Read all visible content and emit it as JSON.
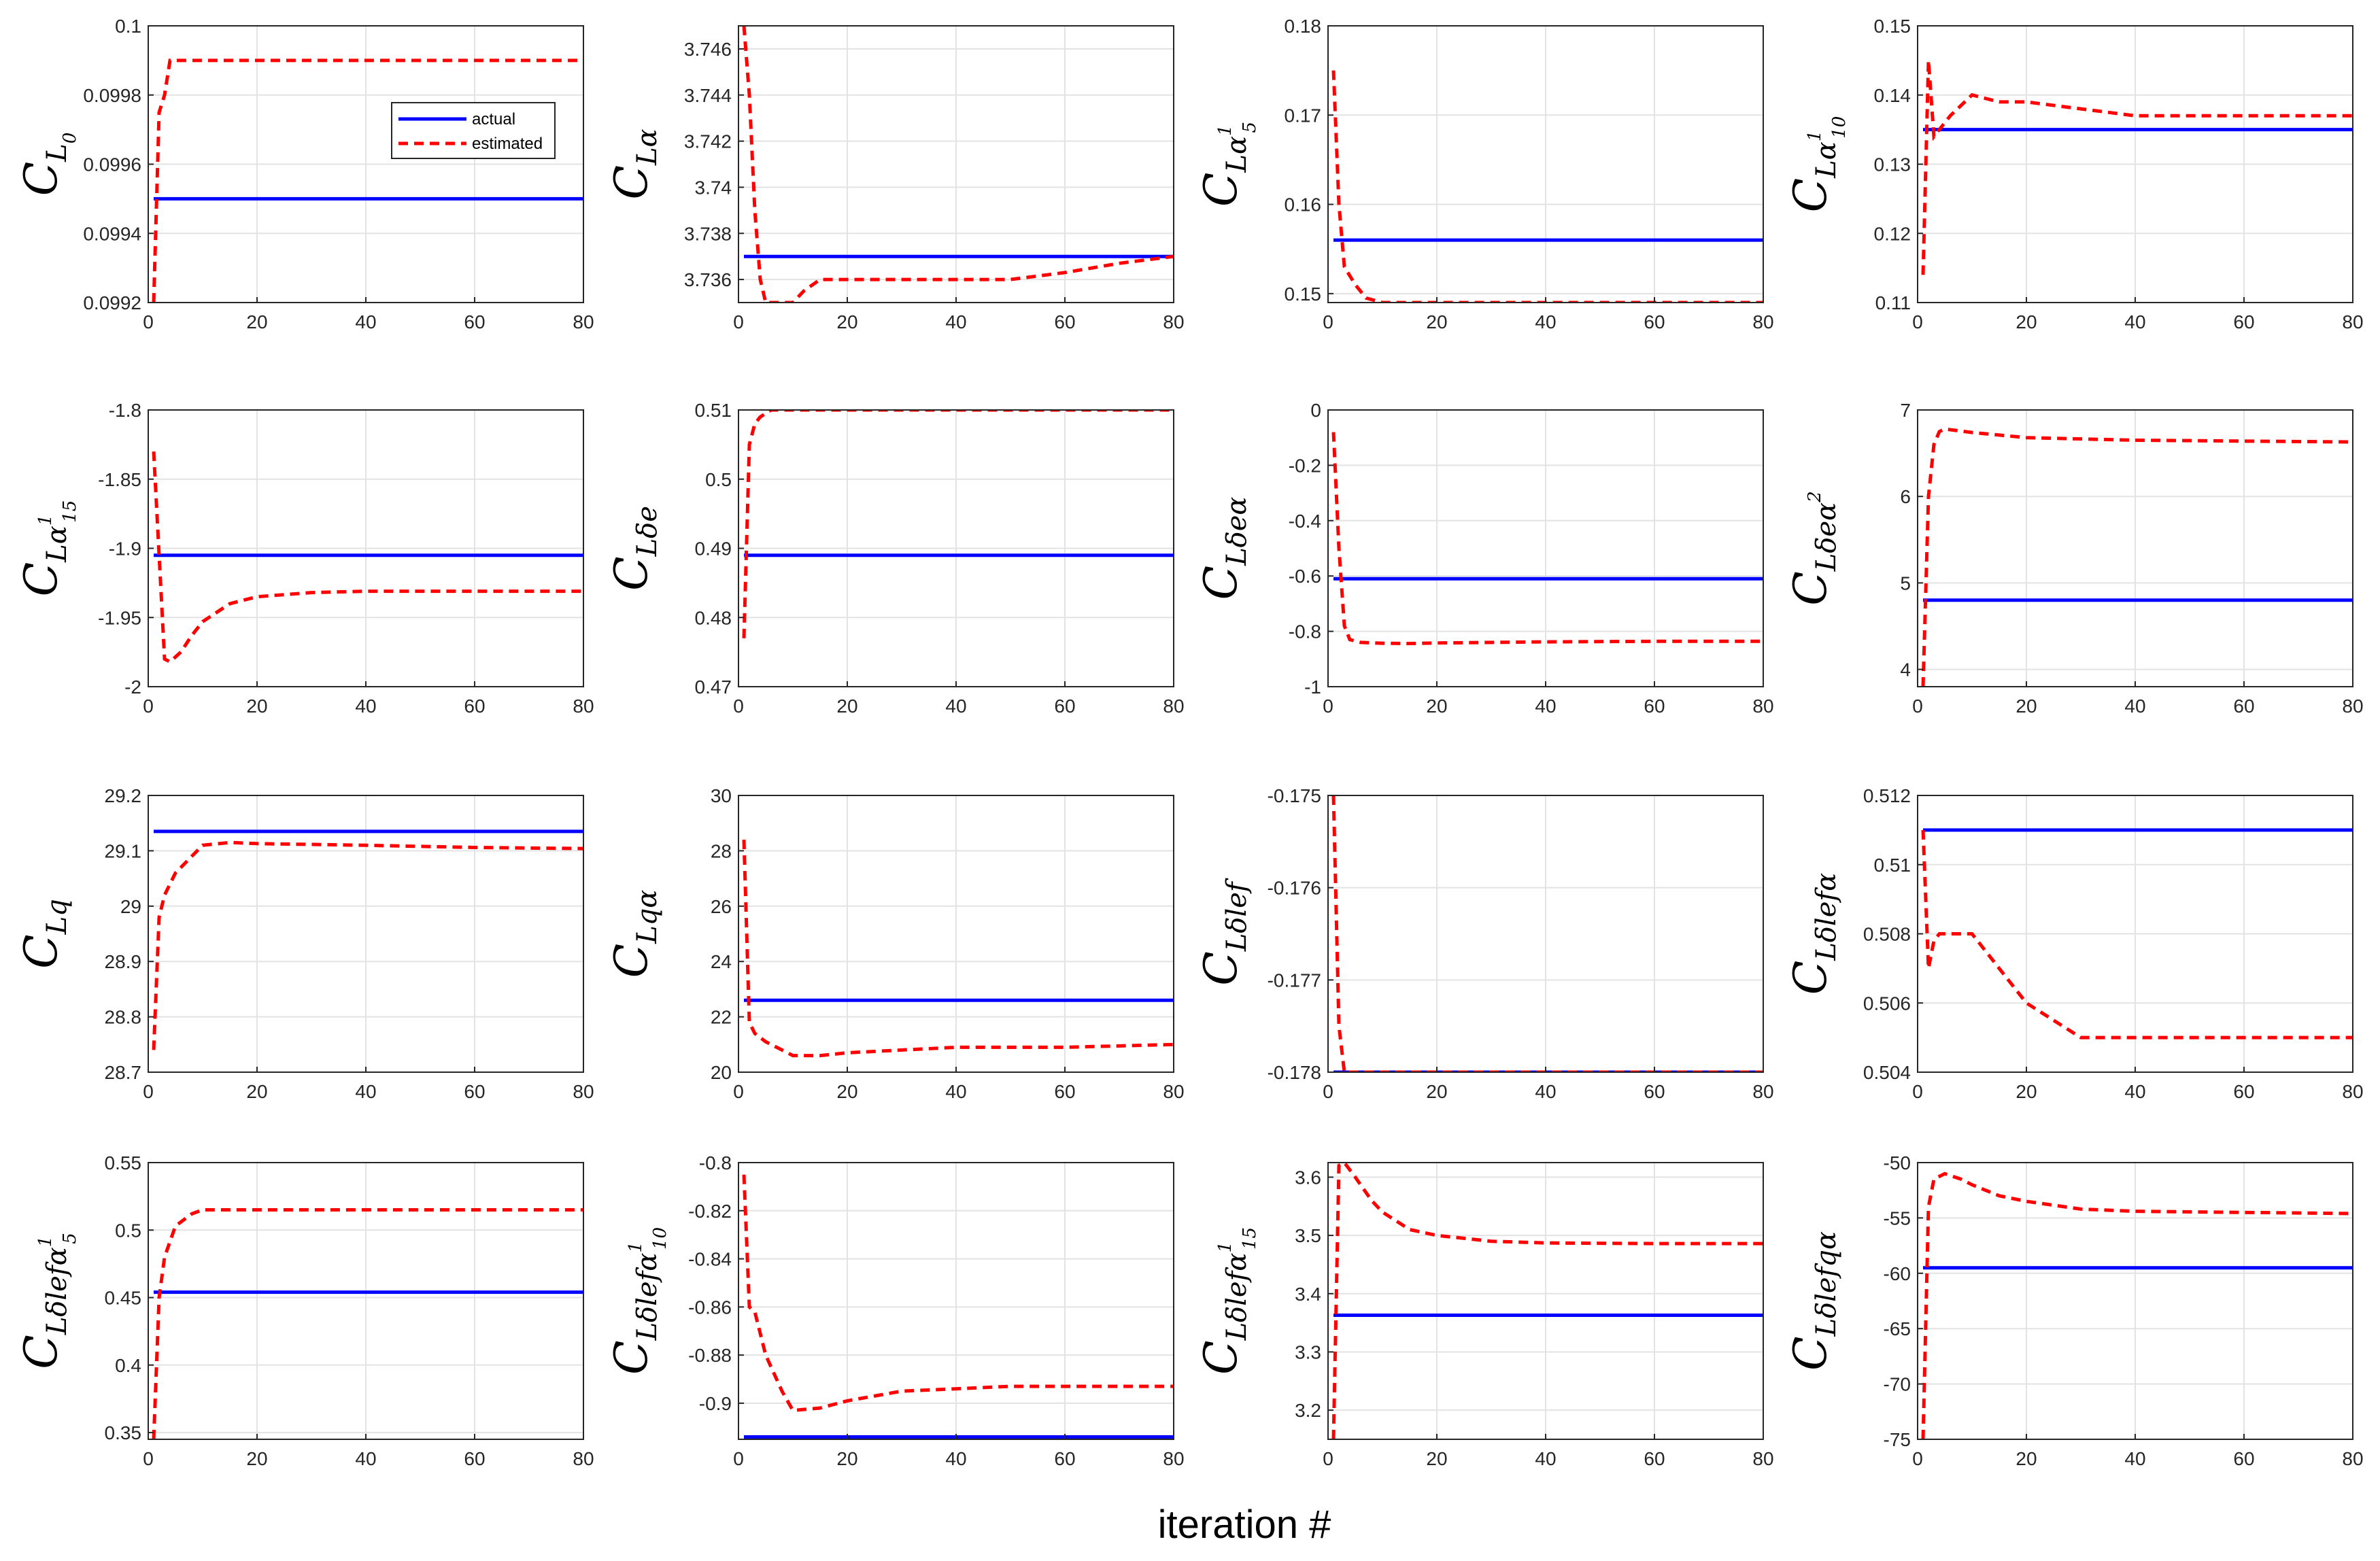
{
  "figure": {
    "xlabel": "iteration #"
  },
  "legend": {
    "actual_label": "actual",
    "estimated_label": "estimated"
  },
  "colors": {
    "actual": "#0000ff",
    "estimated": "#ff0000",
    "grid": "#e3e3e3",
    "axis": "#262626"
  },
  "chart_data": [
    {
      "type": "line",
      "ylabel": {
        "main": "C",
        "sub": "L",
        "subsub": "0",
        "sup": ""
      },
      "xlim": [
        0,
        80
      ],
      "ylim": [
        0.0992,
        0.1
      ],
      "xticks": [
        0,
        20,
        40,
        60,
        80
      ],
      "yticks": [
        0.0992,
        0.0994,
        0.0996,
        0.0998,
        0.1
      ],
      "ytick_labels": [
        "0.0992",
        "0.0994",
        "0.0996",
        "0.0998",
        "0.1"
      ],
      "series": [
        {
          "name": "actual",
          "x": [
            1,
            80
          ],
          "y": [
            0.0995,
            0.0995
          ]
        },
        {
          "name": "estimated",
          "x": [
            1,
            2,
            3,
            4,
            5,
            80
          ],
          "y": [
            0.0992,
            0.09975,
            0.0998,
            0.0999,
            0.0999,
            0.0999
          ]
        }
      ]
    },
    {
      "type": "line",
      "ylabel": {
        "main": "C",
        "sub": "Lα",
        "subsub": "",
        "sup": ""
      },
      "xlim": [
        0,
        80
      ],
      "ylim": [
        3.735,
        3.747
      ],
      "xticks": [
        0,
        20,
        40,
        60,
        80
      ],
      "yticks": [
        3.736,
        3.738,
        3.74,
        3.742,
        3.744,
        3.746
      ],
      "ytick_labels": [
        "3.736",
        "3.738",
        "3.74",
        "3.742",
        "3.744",
        "3.746"
      ],
      "series": [
        {
          "name": "actual",
          "x": [
            1,
            80
          ],
          "y": [
            3.737,
            3.737
          ]
        },
        {
          "name": "estimated",
          "x": [
            1,
            2,
            3,
            4,
            5,
            7,
            10,
            12,
            15,
            20,
            30,
            40,
            50,
            60,
            70,
            80
          ],
          "y": [
            3.747,
            3.744,
            3.739,
            3.736,
            3.735,
            3.735,
            3.735,
            3.7355,
            3.736,
            3.736,
            3.736,
            3.736,
            3.736,
            3.7363,
            3.7367,
            3.737
          ]
        }
      ]
    },
    {
      "type": "line",
      "ylabel": {
        "main": "C",
        "sub": "Lα",
        "subsub": "5",
        "sup": "1"
      },
      "xlim": [
        0,
        80
      ],
      "ylim": [
        0.149,
        0.18
      ],
      "xticks": [
        0,
        20,
        40,
        60,
        80
      ],
      "yticks": [
        0.15,
        0.16,
        0.17,
        0.18
      ],
      "ytick_labels": [
        "0.15",
        "0.16",
        "0.17",
        "0.18"
      ],
      "series": [
        {
          "name": "actual",
          "x": [
            1,
            80
          ],
          "y": [
            0.156,
            0.156
          ]
        },
        {
          "name": "estimated",
          "x": [
            1,
            2,
            3,
            5,
            7,
            10,
            20,
            40,
            60,
            80
          ],
          "y": [
            0.175,
            0.16,
            0.153,
            0.151,
            0.1495,
            0.149,
            0.149,
            0.149,
            0.149,
            0.149
          ]
        }
      ]
    },
    {
      "type": "line",
      "ylabel": {
        "main": "C",
        "sub": "Lα",
        "subsub": "10",
        "sup": "1"
      },
      "xlim": [
        0,
        80
      ],
      "ylim": [
        0.11,
        0.15
      ],
      "xticks": [
        0,
        20,
        40,
        60,
        80
      ],
      "yticks": [
        0.11,
        0.12,
        0.13,
        0.14,
        0.15
      ],
      "ytick_labels": [
        "0.11",
        "0.12",
        "0.13",
        "0.14",
        "0.15"
      ],
      "series": [
        {
          "name": "actual",
          "x": [
            1,
            80
          ],
          "y": [
            0.135,
            0.135
          ]
        },
        {
          "name": "estimated",
          "x": [
            1,
            2,
            3,
            4,
            6,
            10,
            15,
            20,
            30,
            40,
            60,
            80
          ],
          "y": [
            0.114,
            0.145,
            0.134,
            0.135,
            0.137,
            0.14,
            0.139,
            0.139,
            0.138,
            0.137,
            0.137,
            0.137
          ]
        }
      ]
    },
    {
      "type": "line",
      "ylabel": {
        "main": "C",
        "sub": "Lα",
        "subsub": "15",
        "sup": "1"
      },
      "xlim": [
        0,
        80
      ],
      "ylim": [
        -2,
        -1.8
      ],
      "xticks": [
        0,
        20,
        40,
        60,
        80
      ],
      "yticks": [
        -2,
        -1.95,
        -1.9,
        -1.85,
        -1.8
      ],
      "ytick_labels": [
        "-2",
        "-1.95",
        "-1.9",
        "-1.85",
        "-1.8"
      ],
      "series": [
        {
          "name": "actual",
          "x": [
            1,
            80
          ],
          "y": [
            -1.905,
            -1.905
          ]
        },
        {
          "name": "estimated",
          "x": [
            1,
            3,
            4,
            6,
            8,
            10,
            15,
            20,
            30,
            40,
            60,
            80
          ],
          "y": [
            -1.83,
            -1.98,
            -1.982,
            -1.975,
            -1.963,
            -1.953,
            -1.94,
            -1.935,
            -1.932,
            -1.931,
            -1.931,
            -1.931
          ]
        }
      ]
    },
    {
      "type": "line",
      "ylabel": {
        "main": "C",
        "sub": "Lδe",
        "subsub": "",
        "sup": ""
      },
      "xlim": [
        0,
        80
      ],
      "ylim": [
        0.47,
        0.51
      ],
      "xticks": [
        0,
        20,
        40,
        60,
        80
      ],
      "yticks": [
        0.47,
        0.48,
        0.49,
        0.5,
        0.51
      ],
      "ytick_labels": [
        "0.47",
        "0.48",
        "0.49",
        "0.5",
        "0.51"
      ],
      "series": [
        {
          "name": "actual",
          "x": [
            1,
            80
          ],
          "y": [
            0.489,
            0.489
          ]
        },
        {
          "name": "estimated",
          "x": [
            1,
            2,
            3,
            4,
            6,
            10,
            20,
            40,
            60,
            80
          ],
          "y": [
            0.477,
            0.505,
            0.508,
            0.509,
            0.51,
            0.51,
            0.51,
            0.51,
            0.51,
            0.51
          ]
        }
      ]
    },
    {
      "type": "line",
      "ylabel": {
        "main": "C",
        "sub": "Lδeα",
        "subsub": "",
        "sup": ""
      },
      "xlim": [
        0,
        80
      ],
      "ylim": [
        -1,
        0
      ],
      "xticks": [
        0,
        20,
        40,
        60,
        80
      ],
      "yticks": [
        -1,
        -0.8,
        -0.6,
        -0.4,
        -0.2,
        0
      ],
      "ytick_labels": [
        "-1",
        "-0.8",
        "-0.6",
        "-0.4",
        "-0.2",
        "0"
      ],
      "series": [
        {
          "name": "actual",
          "x": [
            1,
            80
          ],
          "y": [
            -0.61,
            -0.61
          ]
        },
        {
          "name": "estimated",
          "x": [
            1,
            2,
            3,
            4,
            6,
            10,
            15,
            20,
            40,
            60,
            80
          ],
          "y": [
            -0.08,
            -0.5,
            -0.78,
            -0.83,
            -0.84,
            -0.843,
            -0.844,
            -0.842,
            -0.838,
            -0.836,
            -0.836
          ]
        }
      ]
    },
    {
      "type": "line",
      "ylabel": {
        "main": "C",
        "sub": "Lδeα",
        "subsub": "",
        "sup": "2"
      },
      "xlim": [
        0,
        80
      ],
      "ylim": [
        3.8,
        7
      ],
      "xticks": [
        0,
        20,
        40,
        60,
        80
      ],
      "yticks": [
        4,
        5,
        6,
        7
      ],
      "ytick_labels": [
        "4",
        "5",
        "6",
        "7"
      ],
      "series": [
        {
          "name": "actual",
          "x": [
            1,
            80
          ],
          "y": [
            4.8,
            4.8
          ]
        },
        {
          "name": "estimated",
          "x": [
            1,
            2,
            3,
            4,
            5,
            10,
            20,
            40,
            60,
            80
          ],
          "y": [
            3.8,
            6.0,
            6.6,
            6.75,
            6.78,
            6.74,
            6.68,
            6.65,
            6.64,
            6.63
          ]
        }
      ]
    },
    {
      "type": "line",
      "ylabel": {
        "main": "C",
        "sub": "Lq",
        "subsub": "",
        "sup": ""
      },
      "xlim": [
        0,
        80
      ],
      "ylim": [
        28.7,
        29.2
      ],
      "xticks": [
        0,
        20,
        40,
        60,
        80
      ],
      "yticks": [
        28.7,
        28.8,
        28.9,
        29,
        29.1,
        29.2
      ],
      "ytick_labels": [
        "28.7",
        "28.8",
        "28.9",
        "29",
        "29.1",
        "29.2"
      ],
      "series": [
        {
          "name": "actual",
          "x": [
            1,
            80
          ],
          "y": [
            29.135,
            29.135
          ]
        },
        {
          "name": "estimated",
          "x": [
            1,
            2,
            3,
            5,
            8,
            10,
            15,
            20,
            40,
            60,
            80
          ],
          "y": [
            28.74,
            28.98,
            29.02,
            29.06,
            29.09,
            29.11,
            29.115,
            29.113,
            29.11,
            29.106,
            29.104
          ]
        }
      ]
    },
    {
      "type": "line",
      "ylabel": {
        "main": "C",
        "sub": "Lqα",
        "subsub": "",
        "sup": ""
      },
      "xlim": [
        0,
        80
      ],
      "ylim": [
        20,
        30
      ],
      "xticks": [
        0,
        20,
        40,
        60,
        80
      ],
      "yticks": [
        20,
        22,
        24,
        26,
        28,
        30
      ],
      "ytick_labels": [
        "20",
        "22",
        "24",
        "26",
        "28",
        "30"
      ],
      "series": [
        {
          "name": "actual",
          "x": [
            1,
            80
          ],
          "y": [
            22.6,
            22.6
          ]
        },
        {
          "name": "estimated",
          "x": [
            1,
            2,
            3,
            5,
            8,
            10,
            15,
            20,
            40,
            60,
            80
          ],
          "y": [
            28.4,
            21.8,
            21.4,
            21.1,
            20.8,
            20.6,
            20.6,
            20.7,
            20.9,
            20.9,
            21.0
          ]
        }
      ]
    },
    {
      "type": "line",
      "ylabel": {
        "main": "C",
        "sub": "Lδlef",
        "subsub": "",
        "sup": ""
      },
      "xlim": [
        0,
        80
      ],
      "ylim": [
        -0.178,
        -0.175
      ],
      "xticks": [
        0,
        20,
        40,
        60,
        80
      ],
      "yticks": [
        -0.178,
        -0.177,
        -0.176,
        -0.175
      ],
      "ytick_labels": [
        "-0.178",
        "-0.177",
        "-0.176",
        "-0.175"
      ],
      "series": [
        {
          "name": "actual",
          "x": [
            1,
            80
          ],
          "y": [
            -0.178,
            -0.178
          ]
        },
        {
          "name": "estimated",
          "x": [
            1,
            2,
            3,
            80
          ],
          "y": [
            -0.175,
            -0.1775,
            -0.178,
            -0.178
          ]
        }
      ]
    },
    {
      "type": "line",
      "ylabel": {
        "main": "C",
        "sub": "Lδlefα",
        "subsub": "",
        "sup": ""
      },
      "xlim": [
        0,
        80
      ],
      "ylim": [
        0.504,
        0.512
      ],
      "xticks": [
        0,
        20,
        40,
        60,
        80
      ],
      "yticks": [
        0.504,
        0.506,
        0.508,
        0.51,
        0.512
      ],
      "ytick_labels": [
        "0.504",
        "0.506",
        "0.508",
        "0.51",
        "0.512"
      ],
      "series": [
        {
          "name": "actual",
          "x": [
            1,
            80
          ],
          "y": [
            0.511,
            0.511
          ]
        },
        {
          "name": "estimated",
          "x": [
            1,
            2,
            3,
            4,
            6,
            10,
            15,
            20,
            30,
            40,
            60,
            80
          ],
          "y": [
            0.511,
            0.507,
            0.5078,
            0.508,
            0.508,
            0.508,
            0.507,
            0.506,
            0.505,
            0.505,
            0.505,
            0.505
          ]
        }
      ]
    },
    {
      "type": "line",
      "ylabel": {
        "main": "C",
        "sub": "Lδlefα",
        "subsub": "5",
        "sup": "1"
      },
      "xlim": [
        0,
        80
      ],
      "ylim": [
        0.345,
        0.55
      ],
      "xticks": [
        0,
        20,
        40,
        60,
        80
      ],
      "yticks": [
        0.35,
        0.4,
        0.45,
        0.5,
        0.55
      ],
      "ytick_labels": [
        "0.35",
        "0.4",
        "0.45",
        "0.5",
        "0.55"
      ],
      "series": [
        {
          "name": "actual",
          "x": [
            1,
            80
          ],
          "y": [
            0.454,
            0.454
          ]
        },
        {
          "name": "estimated",
          "x": [
            1,
            2,
            3,
            5,
            8,
            10,
            20,
            40,
            60,
            80
          ],
          "y": [
            0.345,
            0.45,
            0.48,
            0.503,
            0.512,
            0.515,
            0.515,
            0.515,
            0.515,
            0.515
          ]
        }
      ]
    },
    {
      "type": "line",
      "ylabel": {
        "main": "C",
        "sub": "Lδlefα",
        "subsub": "10",
        "sup": "1"
      },
      "xlim": [
        0,
        80
      ],
      "ylim": [
        -0.915,
        -0.8
      ],
      "xticks": [
        0,
        20,
        40,
        60,
        80
      ],
      "yticks": [
        -0.9,
        -0.88,
        -0.86,
        -0.84,
        -0.82,
        -0.8
      ],
      "ytick_labels": [
        "-0.9",
        "-0.88",
        "-0.86",
        "-0.84",
        "-0.82",
        "-0.8"
      ],
      "series": [
        {
          "name": "actual",
          "x": [
            1,
            80
          ],
          "y": [
            -0.914,
            -0.914
          ]
        },
        {
          "name": "estimated",
          "x": [
            1,
            2,
            3,
            5,
            8,
            10,
            15,
            20,
            30,
            40,
            50,
            60,
            80
          ],
          "y": [
            -0.805,
            -0.86,
            -0.862,
            -0.88,
            -0.895,
            -0.903,
            -0.902,
            -0.899,
            -0.895,
            -0.894,
            -0.893,
            -0.893,
            -0.893
          ]
        }
      ]
    },
    {
      "type": "line",
      "ylabel": {
        "main": "C",
        "sub": "Lδlefα",
        "subsub": "15",
        "sup": "1"
      },
      "xlim": [
        0,
        80
      ],
      "ylim": [
        3.15,
        3.625
      ],
      "xticks": [
        0,
        20,
        40,
        60,
        80
      ],
      "yticks": [
        3.2,
        3.3,
        3.4,
        3.5,
        3.6
      ],
      "ytick_labels": [
        "3.2",
        "3.3",
        "3.4",
        "3.5",
        "3.6"
      ],
      "series": [
        {
          "name": "actual",
          "x": [
            1,
            80
          ],
          "y": [
            3.363,
            3.363
          ]
        },
        {
          "name": "estimated",
          "x": [
            1,
            2,
            3,
            5,
            8,
            10,
            15,
            20,
            30,
            40,
            60,
            80
          ],
          "y": [
            3.15,
            3.62,
            3.625,
            3.6,
            3.56,
            3.54,
            3.51,
            3.5,
            3.49,
            3.487,
            3.486,
            3.486
          ]
        }
      ]
    },
    {
      "type": "line",
      "ylabel": {
        "main": "C",
        "sub": "Lδlefqα",
        "subsub": "",
        "sup": ""
      },
      "xlim": [
        0,
        80
      ],
      "ylim": [
        -75,
        -50
      ],
      "xticks": [
        0,
        20,
        40,
        60,
        80
      ],
      "yticks": [
        -75,
        -70,
        -65,
        -60,
        -55,
        -50
      ],
      "ytick_labels": [
        "-75",
        "-70",
        "-65",
        "-60",
        "-55",
        "-50"
      ],
      "series": [
        {
          "name": "actual",
          "x": [
            1,
            80
          ],
          "y": [
            -59.5,
            -59.5
          ]
        },
        {
          "name": "estimated",
          "x": [
            1,
            2,
            3,
            5,
            8,
            10,
            15,
            20,
            30,
            40,
            60,
            80
          ],
          "y": [
            -75,
            -54,
            -51.5,
            -51,
            -51.5,
            -52,
            -53,
            -53.5,
            -54.2,
            -54.4,
            -54.5,
            -54.6
          ]
        }
      ]
    }
  ]
}
